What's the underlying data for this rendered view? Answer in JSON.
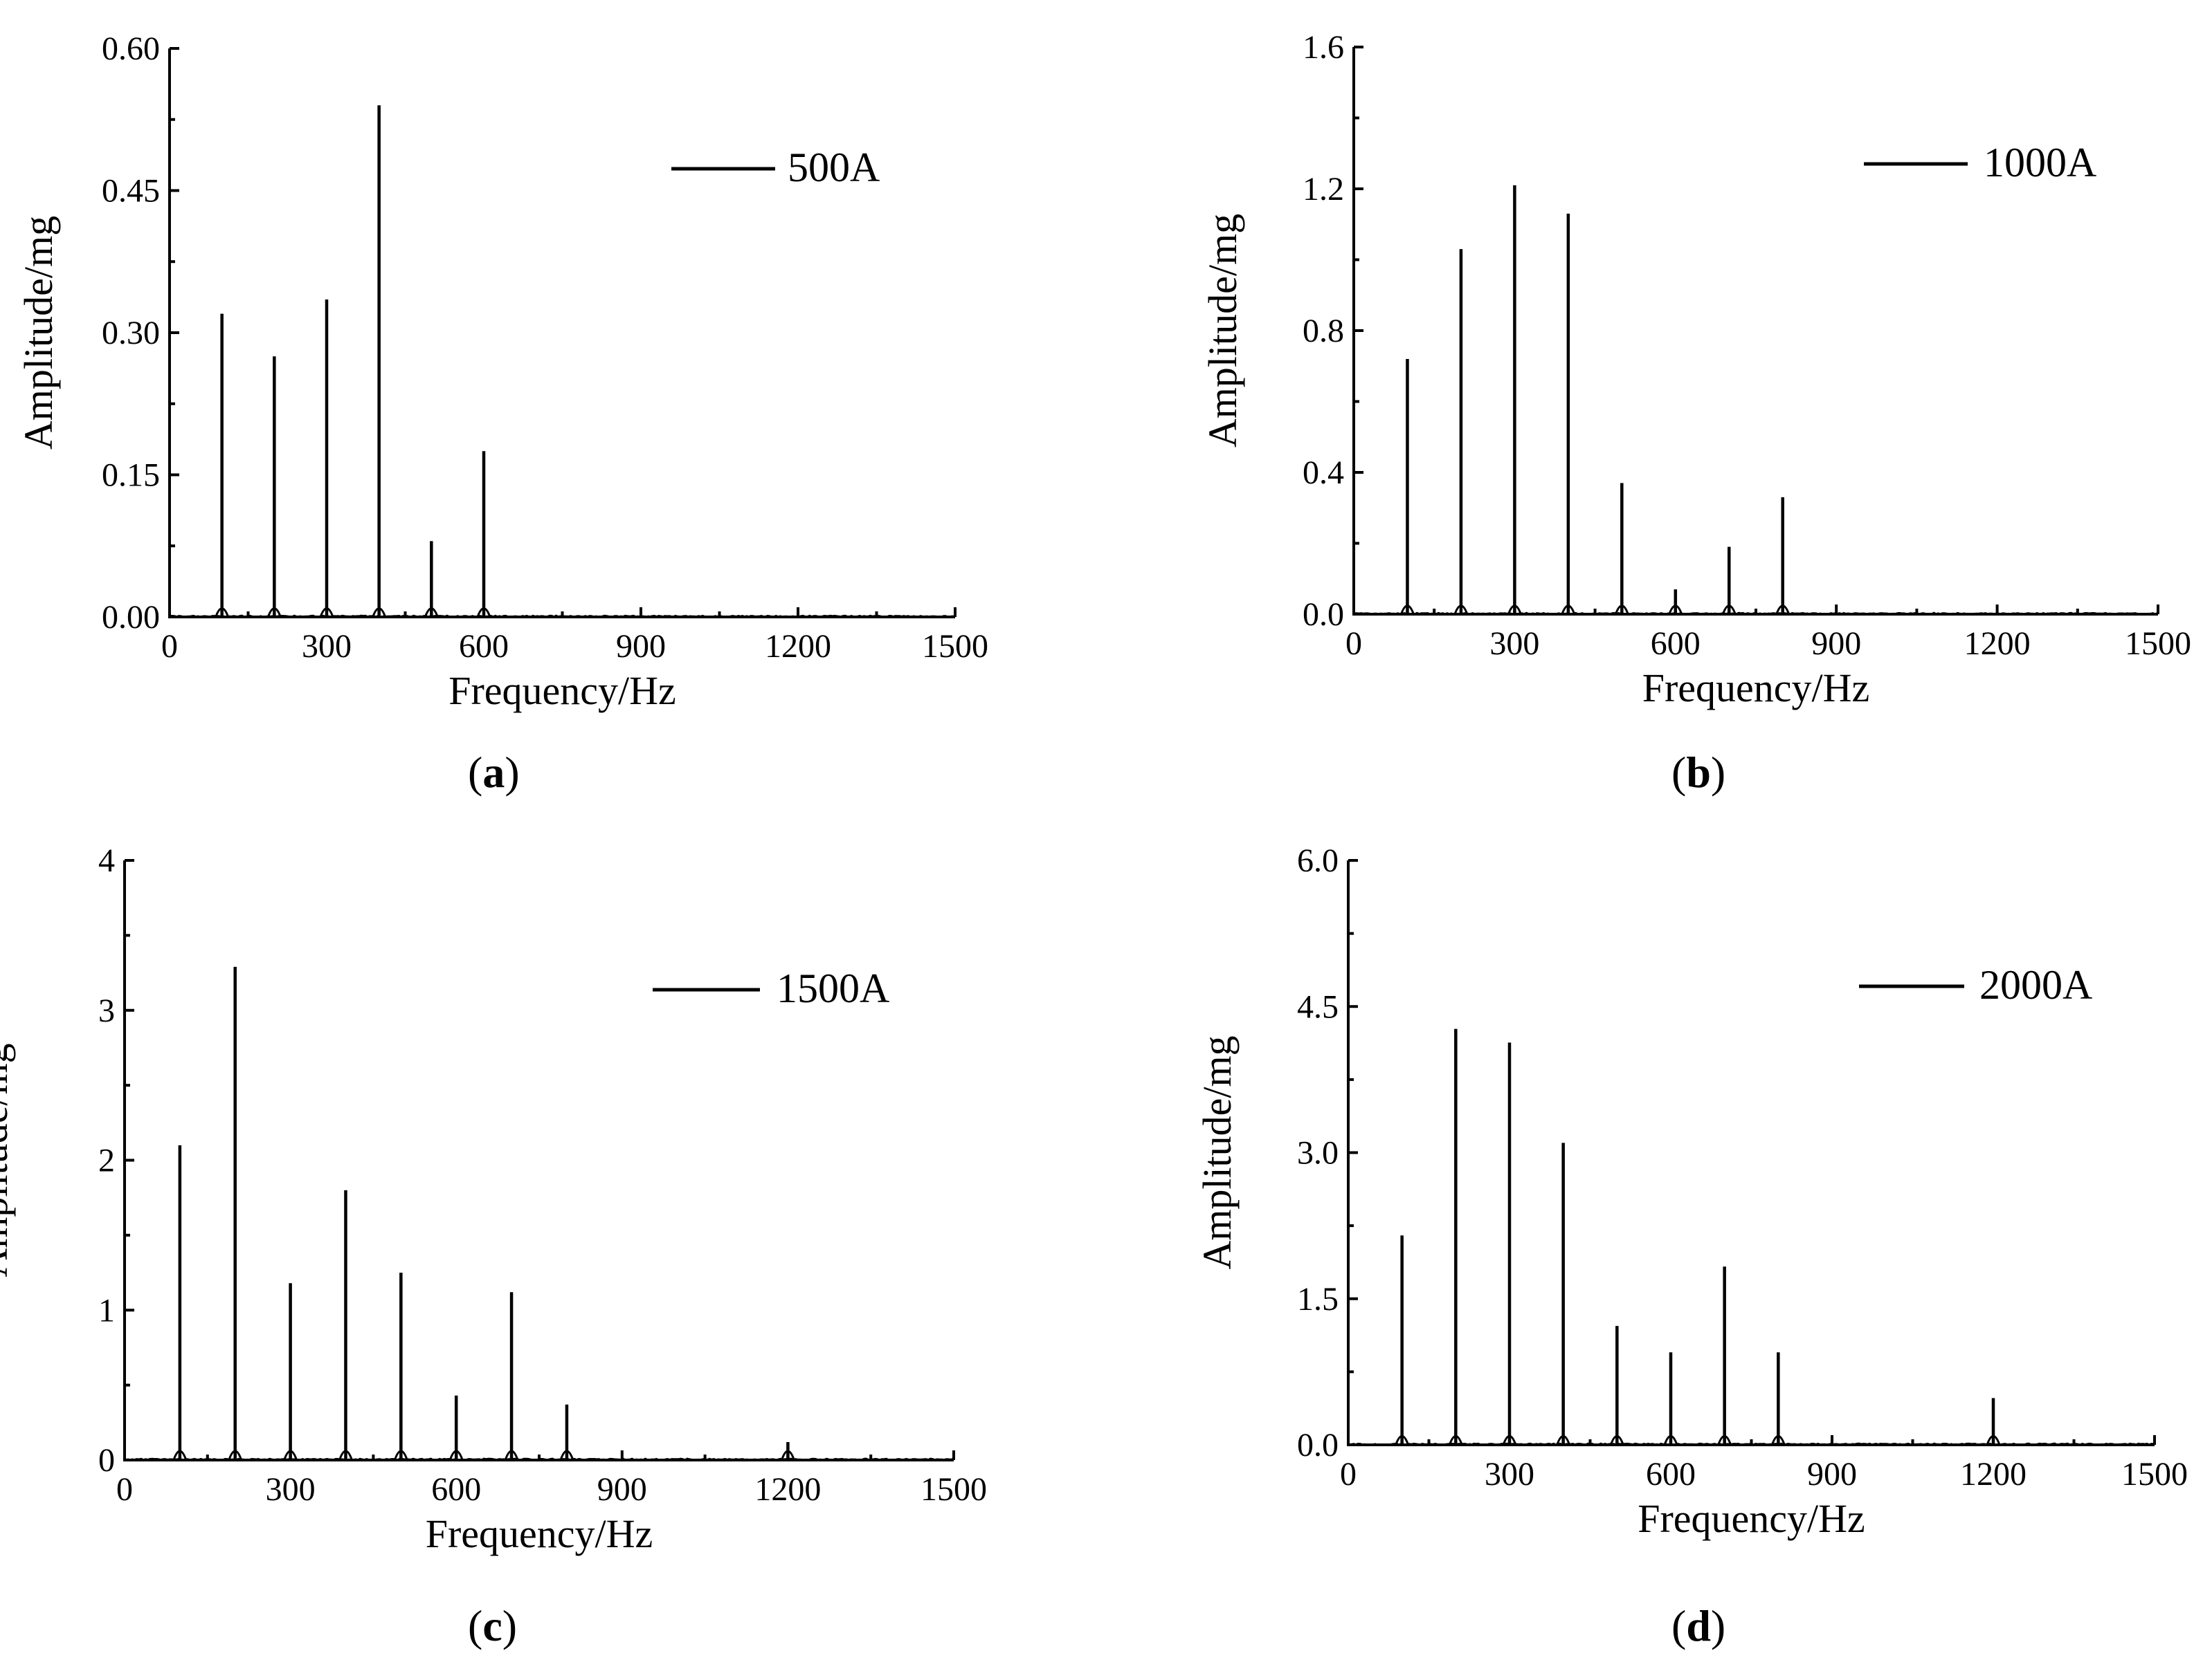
{
  "chart_data": [
    {
      "type": "line",
      "panel_label": "a",
      "xlabel": "Frequency/Hz",
      "ylabel": "Amplitude/mg",
      "xlim": [
        0,
        1500
      ],
      "ylim": [
        0,
        0.6
      ],
      "x_ticks": [
        "0",
        "300",
        "600",
        "900",
        "1200",
        "1500"
      ],
      "y_ticks": [
        "0.00",
        "0.15",
        "0.30",
        "0.45",
        "0.60"
      ],
      "series": [
        {
          "name": "500A",
          "peaks": [
            {
              "x": 100,
              "y": 0.32
            },
            {
              "x": 200,
              "y": 0.275
            },
            {
              "x": 300,
              "y": 0.335
            },
            {
              "x": 400,
              "y": 0.54
            },
            {
              "x": 500,
              "y": 0.08
            },
            {
              "x": 600,
              "y": 0.175
            }
          ]
        }
      ]
    },
    {
      "type": "line",
      "panel_label": "b",
      "xlabel": "Frequency/Hz",
      "ylabel": "Amplitude/mg",
      "xlim": [
        0,
        1500
      ],
      "ylim": [
        0,
        1.6
      ],
      "x_ticks": [
        "0",
        "300",
        "600",
        "900",
        "1200",
        "1500"
      ],
      "y_ticks": [
        "0.0",
        "0.4",
        "0.8",
        "1.2",
        "1.6"
      ],
      "series": [
        {
          "name": "1000A",
          "peaks": [
            {
              "x": 100,
              "y": 0.72
            },
            {
              "x": 200,
              "y": 1.03
            },
            {
              "x": 300,
              "y": 1.21
            },
            {
              "x": 400,
              "y": 1.13
            },
            {
              "x": 500,
              "y": 0.37
            },
            {
              "x": 600,
              "y": 0.07
            },
            {
              "x": 700,
              "y": 0.19
            },
            {
              "x": 800,
              "y": 0.33
            }
          ]
        }
      ]
    },
    {
      "type": "line",
      "panel_label": "c",
      "xlabel": "Frequency/Hz",
      "ylabel": "Amplitude/mg",
      "xlim": [
        0,
        1500
      ],
      "ylim": [
        0,
        4
      ],
      "x_ticks": [
        "0",
        "300",
        "600",
        "900",
        "1200",
        "1500"
      ],
      "y_ticks": [
        "0",
        "1",
        "2",
        "3",
        "4"
      ],
      "series": [
        {
          "name": "1500A",
          "peaks": [
            {
              "x": 100,
              "y": 2.1
            },
            {
              "x": 200,
              "y": 3.29
            },
            {
              "x": 300,
              "y": 1.18
            },
            {
              "x": 400,
              "y": 1.8
            },
            {
              "x": 500,
              "y": 1.25
            },
            {
              "x": 600,
              "y": 0.43
            },
            {
              "x": 700,
              "y": 1.12
            },
            {
              "x": 800,
              "y": 0.37
            },
            {
              "x": 1200,
              "y": 0.12
            }
          ]
        }
      ]
    },
    {
      "type": "line",
      "panel_label": "d",
      "xlabel": "Frequency/Hz",
      "ylabel": "Amplitude/mg",
      "xlim": [
        0,
        1500
      ],
      "ylim": [
        0,
        6.0
      ],
      "x_ticks": [
        "0",
        "300",
        "600",
        "900",
        "1200",
        "1500"
      ],
      "y_ticks": [
        "0.0",
        "1.5",
        "3.0",
        "4.5",
        "6.0"
      ],
      "series": [
        {
          "name": "2000A",
          "peaks": [
            {
              "x": 100,
              "y": 2.15
            },
            {
              "x": 200,
              "y": 4.27
            },
            {
              "x": 300,
              "y": 4.13
            },
            {
              "x": 400,
              "y": 3.1
            },
            {
              "x": 500,
              "y": 1.22
            },
            {
              "x": 600,
              "y": 0.95
            },
            {
              "x": 700,
              "y": 1.83
            },
            {
              "x": 800,
              "y": 0.95
            },
            {
              "x": 1200,
              "y": 0.48
            }
          ]
        }
      ]
    }
  ]
}
